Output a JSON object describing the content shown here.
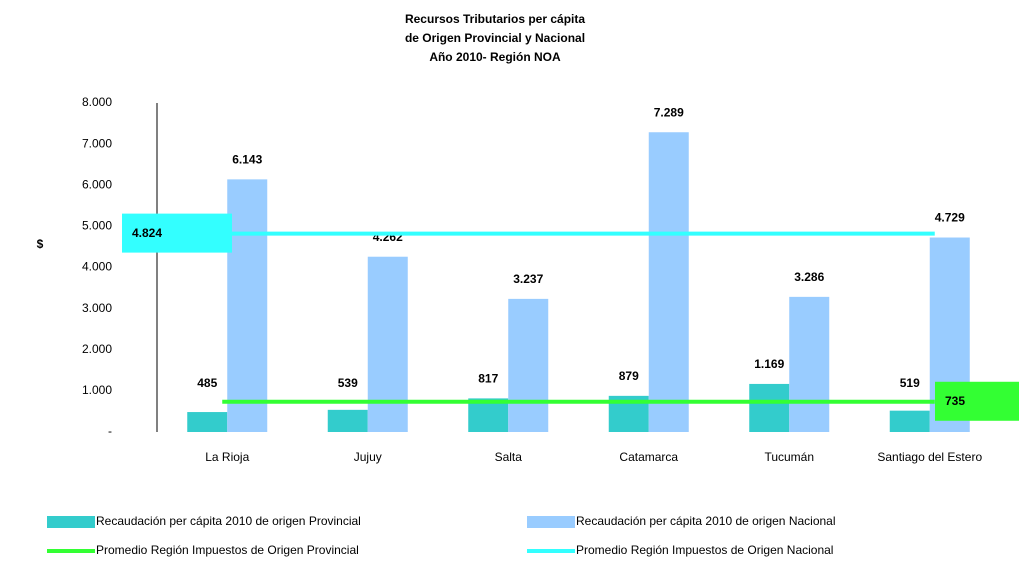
{
  "chart_data": {
    "type": "bar",
    "title": [
      "Recursos Tributarios per cápita",
      "de Origen Provincial y Nacional",
      "Año 2010- Región NOA"
    ],
    "y_label": "$",
    "categories": [
      "La Rioja",
      "Jujuy",
      "Salta",
      "Catamarca",
      "Tucumán",
      "Santiago del Estero"
    ],
    "series": [
      {
        "name": "Recaudación per cápita 2010 de origen Provincial",
        "color": "#33cccc",
        "values": [
          485,
          539,
          817,
          879,
          1169,
          519
        ],
        "value_labels": [
          "485",
          "539",
          "817",
          "879",
          "1.169",
          "519"
        ]
      },
      {
        "name": "Recaudación per cápita 2010 de origen Nacional",
        "color": "#99ccff",
        "values": [
          6143,
          4262,
          3237,
          7289,
          3286,
          4729
        ],
        "value_labels": [
          "6.143",
          "4.262",
          "3.237",
          "7.289",
          "3.286",
          "4.729"
        ]
      }
    ],
    "reference_lines": [
      {
        "name": "Promedio Región Impuestos de Origen Provincial",
        "color": "#33ff33",
        "value": 735,
        "value_label": "735"
      },
      {
        "name": "Promedio Región Impuestos de Origen Nacional",
        "color": "#33ffff",
        "value": 4824,
        "value_label": "4.824"
      }
    ],
    "ylim": [
      0,
      8000
    ],
    "yticks": [
      {
        "value": 0,
        "label": "-"
      },
      {
        "value": 1000,
        "label": "1.000"
      },
      {
        "value": 2000,
        "label": "2.000"
      },
      {
        "value": 3000,
        "label": "3.000"
      },
      {
        "value": 4000,
        "label": "4.000"
      },
      {
        "value": 5000,
        "label": "5.000"
      },
      {
        "value": 6000,
        "label": "6.000"
      },
      {
        "value": 7000,
        "label": "7.000"
      },
      {
        "value": 8000,
        "label": "8.000"
      }
    ],
    "grid": false
  }
}
